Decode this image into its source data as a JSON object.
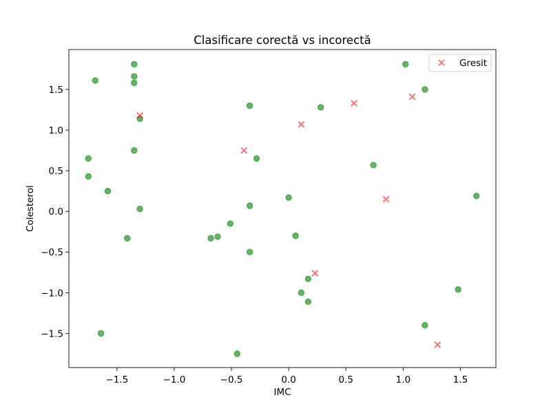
{
  "chart_data": {
    "type": "scatter",
    "title": "Clasificare corectă vs incorectă",
    "xlabel": "IMC",
    "ylabel": "Colesterol",
    "xlim": [
      -1.92,
      1.81
    ],
    "ylim": [
      -1.92,
      1.99
    ],
    "xticks": [
      -1.5,
      -1.0,
      -0.5,
      0.0,
      0.5,
      1.0,
      1.5
    ],
    "xtick_labels": [
      "−1.5",
      "−1.0",
      "−0.5",
      "0.0",
      "0.5",
      "1.0",
      "1.5"
    ],
    "yticks": [
      -1.5,
      -1.0,
      -0.5,
      0.0,
      0.5,
      1.0,
      1.5
    ],
    "ytick_labels": [
      "−1.5",
      "−1.0",
      "−0.5",
      "0.0",
      "0.5",
      "1.0",
      "1.5"
    ],
    "grid": false,
    "legend": {
      "position": "top-right",
      "entries": [
        "Gresit"
      ]
    },
    "series": [
      {
        "marker": "circle",
        "color": "#008000",
        "points": [
          [
            -1.35,
            1.81
          ],
          [
            -1.35,
            1.66
          ],
          [
            -1.69,
            1.61
          ],
          [
            -1.35,
            1.58
          ],
          [
            1.02,
            1.81
          ],
          [
            1.19,
            1.5
          ],
          [
            -0.34,
            1.3
          ],
          [
            0.28,
            1.28
          ],
          [
            -1.3,
            1.14
          ],
          [
            -1.35,
            0.75
          ],
          [
            -1.75,
            0.65
          ],
          [
            -0.28,
            0.65
          ],
          [
            0.74,
            0.57
          ],
          [
            -1.75,
            0.43
          ],
          [
            -1.58,
            0.25
          ],
          [
            1.64,
            0.19
          ],
          [
            0.0,
            0.17
          ],
          [
            -0.34,
            0.07
          ],
          [
            -1.3,
            0.03
          ],
          [
            -0.51,
            -0.15
          ],
          [
            -1.41,
            -0.33
          ],
          [
            -0.68,
            -0.33
          ],
          [
            -0.62,
            -0.31
          ],
          [
            0.06,
            -0.3
          ],
          [
            -0.34,
            -0.5
          ],
          [
            0.17,
            -0.83
          ],
          [
            0.11,
            -1.0
          ],
          [
            0.17,
            -1.11
          ],
          [
            1.48,
            -0.96
          ],
          [
            1.19,
            -1.4
          ],
          [
            -1.64,
            -1.5
          ],
          [
            -0.45,
            -1.75
          ]
        ]
      },
      {
        "name": "Gresit",
        "marker": "x",
        "color": "#ff0000",
        "points": [
          [
            -1.3,
            1.18
          ],
          [
            -0.39,
            0.75
          ],
          [
            0.11,
            1.07
          ],
          [
            0.57,
            1.33
          ],
          [
            1.08,
            1.41
          ],
          [
            0.85,
            0.15
          ],
          [
            0.23,
            -0.76
          ],
          [
            1.3,
            -1.64
          ]
        ]
      }
    ]
  }
}
